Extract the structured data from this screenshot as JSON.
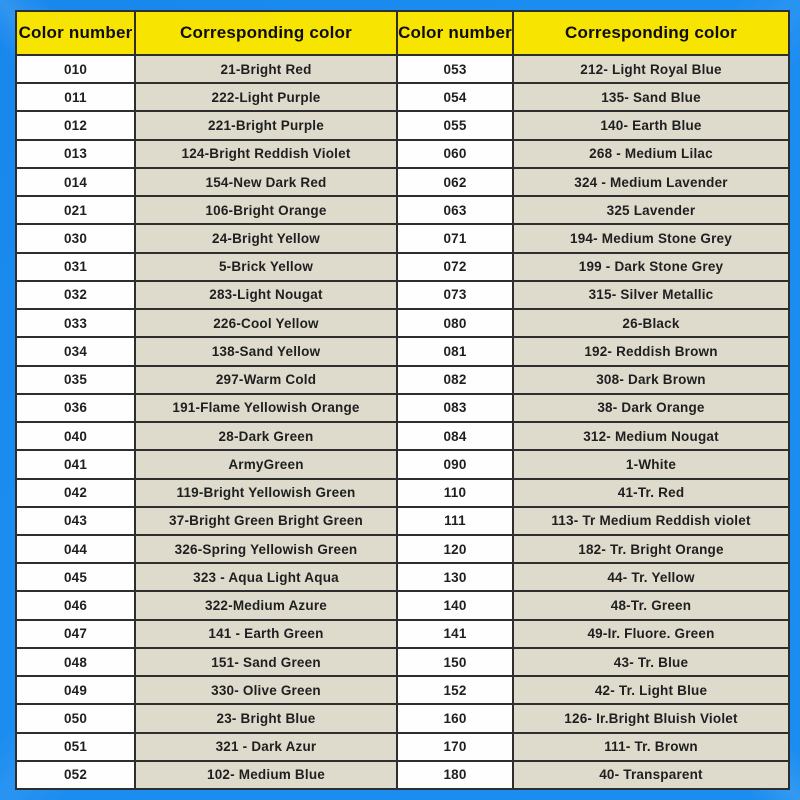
{
  "colors": {
    "background": "#1b8cf0",
    "header_bg": "#f7e400",
    "number_cell_bg": "#fefefe",
    "color_cell_bg": "#dedacc",
    "border": "#2e2e2e",
    "header_text": "#0d0d0d",
    "cell_text": "#1f1f1f"
  },
  "tables": [
    {
      "headers": [
        "Color number",
        "Corresponding color"
      ],
      "rows": [
        [
          "010",
          "21-Bright Red"
        ],
        [
          "011",
          "222-Light Purple"
        ],
        [
          "012",
          "221-Bright Purple"
        ],
        [
          "013",
          "124-Bright Reddish Violet"
        ],
        [
          "014",
          "154-New Dark Red"
        ],
        [
          "021",
          "106-Bright Orange"
        ],
        [
          "030",
          "24-Bright Yellow"
        ],
        [
          "031",
          "5-Brick Yellow"
        ],
        [
          "032",
          "283-Light Nougat"
        ],
        [
          "033",
          "226-Cool Yellow"
        ],
        [
          "034",
          "138-Sand Yellow"
        ],
        [
          "035",
          "297-Warm Cold"
        ],
        [
          "036",
          "191-Flame Yellowish Orange"
        ],
        [
          "040",
          "28-Dark Green"
        ],
        [
          "041",
          "ArmyGreen"
        ],
        [
          "042",
          "119-Bright Yellowish Green"
        ],
        [
          "043",
          "37-Bright Green Bright Green"
        ],
        [
          "044",
          "326-Spring Yellowish Green"
        ],
        [
          "045",
          "323 - Aqua Light Aqua"
        ],
        [
          "046",
          "322-Medium Azure"
        ],
        [
          "047",
          "141 - Earth Green"
        ],
        [
          "048",
          "151- Sand Green"
        ],
        [
          "049",
          "330- Olive Green"
        ],
        [
          "050",
          "23- Bright Blue"
        ],
        [
          "051",
          "321 - Dark Azur"
        ],
        [
          "052",
          "102- Medium Blue"
        ]
      ]
    },
    {
      "headers": [
        "Color number",
        "Corresponding color"
      ],
      "rows": [
        [
          "053",
          "212- Light Royal Blue"
        ],
        [
          "054",
          "135- Sand Blue"
        ],
        [
          "055",
          "140- Earth Blue"
        ],
        [
          "060",
          "268 - Medium Lilac"
        ],
        [
          "062",
          "324 - Medium Lavender"
        ],
        [
          "063",
          "325 Lavender"
        ],
        [
          "071",
          "194- Medium Stone Grey"
        ],
        [
          "072",
          "199 - Dark Stone Grey"
        ],
        [
          "073",
          "315- Silver Metallic"
        ],
        [
          "080",
          "26-Black"
        ],
        [
          "081",
          "192- Reddish Brown"
        ],
        [
          "082",
          "308- Dark Brown"
        ],
        [
          "083",
          "38- Dark Orange"
        ],
        [
          "084",
          "312- Medium Nougat"
        ],
        [
          "090",
          "1-White"
        ],
        [
          "110",
          "41-Tr. Red"
        ],
        [
          "111",
          "113- Tr Medium Reddish violet"
        ],
        [
          "120",
          "182- Tr. Bright Orange"
        ],
        [
          "130",
          "44- Tr. Yellow"
        ],
        [
          "140",
          "48-Tr. Green"
        ],
        [
          "141",
          "49-Ir. Fluore. Green"
        ],
        [
          "150",
          "43- Tr. Blue"
        ],
        [
          "152",
          "42- Tr. Light Blue"
        ],
        [
          "160",
          "126- Ir.Bright Bluish Violet"
        ],
        [
          "170",
          "111- Tr. Brown"
        ],
        [
          "180",
          "40- Transparent"
        ]
      ]
    }
  ]
}
